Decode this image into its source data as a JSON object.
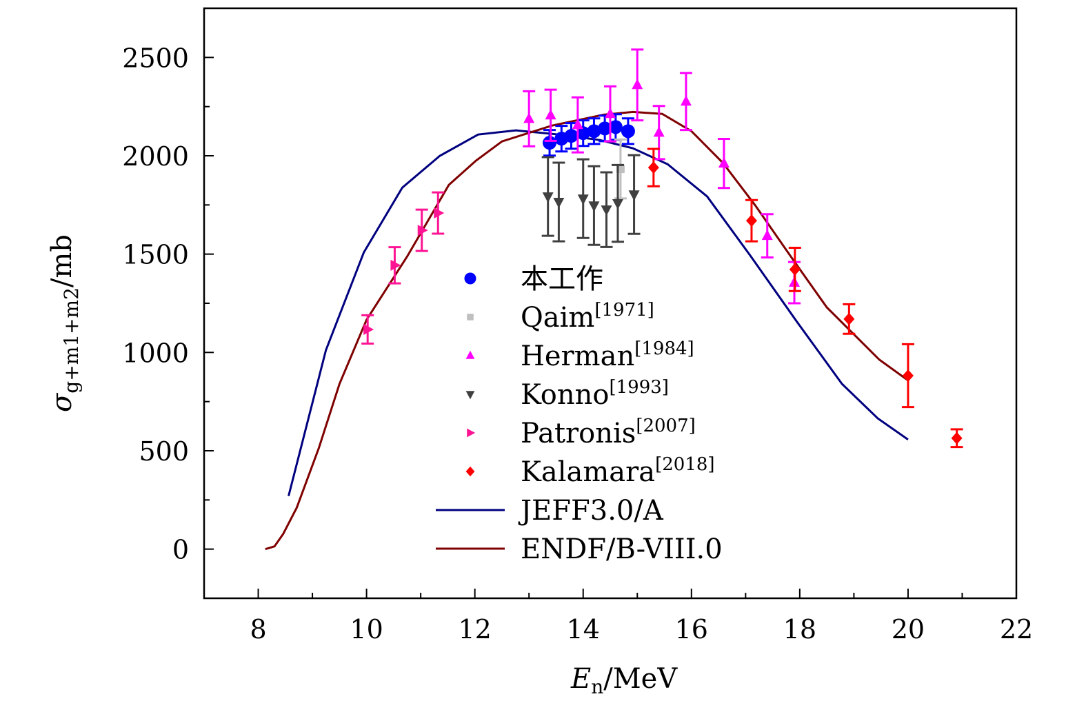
{
  "chart_data": {
    "type": "scatter",
    "title": "",
    "xlabel": {
      "main": "E",
      "sub": "n",
      "unit": "/MeV"
    },
    "ylabel": {
      "main": "σ",
      "sub": "g+m1+m2",
      "unit": "/mb"
    },
    "xlim": [
      7,
      22
    ],
    "ylim": [
      -250,
      2750
    ],
    "xticks": [
      8,
      10,
      12,
      14,
      16,
      18,
      20,
      22
    ],
    "yticks": [
      0,
      500,
      1000,
      1500,
      2000,
      2500
    ],
    "grid": false,
    "legend_position": "center",
    "series": [
      {
        "name": "本工作",
        "ref": "",
        "marker": "circle",
        "color": "#0000ff",
        "x": [
          13.38,
          13.6,
          13.78,
          14.0,
          14.2,
          14.4,
          14.6,
          14.83
        ],
        "y": [
          2066,
          2087,
          2101,
          2115,
          2125,
          2139,
          2146,
          2125
        ],
        "err": [
          65,
          65,
          65,
          65,
          65,
          65,
          65,
          65
        ]
      },
      {
        "name": "Qaim",
        "ref": "[1971]",
        "marker": "square",
        "color": "#bfbfbf",
        "x": [
          14.69
        ],
        "y": [
          1933
        ],
        "err": [
          150
        ]
      },
      {
        "name": "Herman",
        "ref": "[1984]",
        "marker": "triangle-up",
        "color": "#ff00ff",
        "x": [
          13.0,
          13.4,
          13.9,
          14.5,
          15.0,
          15.4,
          15.9,
          16.6,
          17.4,
          17.9
        ],
        "y": [
          2188,
          2206,
          2157,
          2213,
          2360,
          2118,
          2276,
          1961,
          1593,
          1355
        ],
        "err": [
          140,
          130,
          140,
          140,
          180,
          135,
          145,
          125,
          110,
          105
        ]
      },
      {
        "name": "Konno",
        "ref": "[1993]",
        "marker": "triangle-down",
        "color": "#404040",
        "x": [
          13.35,
          13.55,
          14.0,
          14.2,
          14.43,
          14.64,
          14.94
        ],
        "y": [
          1793,
          1765,
          1782,
          1747,
          1726,
          1758,
          1803
        ],
        "err": [
          200,
          200,
          200,
          200,
          190,
          195,
          200
        ]
      },
      {
        "name": "Patronis",
        "ref": "[2007]",
        "marker": "triangle-right",
        "color": "#ff1493",
        "x": [
          10.02,
          10.52,
          11.02,
          11.32
        ],
        "y": [
          1117,
          1443,
          1621,
          1709
        ],
        "err": [
          72,
          92,
          105,
          105
        ]
      },
      {
        "name": "Kalamara",
        "ref": "[2018]",
        "marker": "diamond",
        "color": "#ff0000",
        "x": [
          15.3,
          17.11,
          17.91,
          18.91,
          20.0,
          20.9
        ],
        "y": [
          1940,
          1670,
          1422,
          1170,
          882,
          564
        ],
        "err": [
          95,
          105,
          110,
          75,
          160,
          45
        ]
      }
    ],
    "lines": [
      {
        "name": "JEFF3.0/A",
        "color": "#00007f",
        "x": [
          8.56,
          9.25,
          9.95,
          10.66,
          11.35,
          12.06,
          12.76,
          13.55,
          14.31,
          14.92,
          15.56,
          16.29,
          17.08,
          17.94,
          18.78,
          19.44,
          20.0
        ],
        "y": [
          270,
          1012,
          1509,
          1838,
          1999,
          2108,
          2129,
          2108,
          2080,
          2038,
          1957,
          1793,
          1495,
          1159,
          840,
          665,
          557
        ]
      },
      {
        "name": "ENDF/B-VIII.0",
        "color": "#7f0000",
        "x": [
          8.13,
          8.3,
          8.46,
          8.71,
          9.12,
          9.5,
          10.0,
          10.75,
          11.52,
          12.02,
          12.5,
          13.42,
          14.38,
          14.92,
          15.46,
          16.0,
          16.58,
          17.18,
          17.88,
          18.5,
          19.47,
          20.0
        ],
        "y": [
          0,
          14,
          77,
          210,
          515,
          840,
          1166,
          1488,
          1852,
          1975,
          2073,
          2153,
          2209,
          2223,
          2213,
          2125,
          1964,
          1747,
          1470,
          1229,
          963,
          858
        ]
      }
    ]
  }
}
